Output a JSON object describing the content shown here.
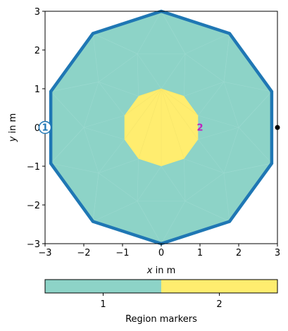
{
  "chart_data": {
    "type": "mesh",
    "xlabel": {
      "var": "x",
      "rest": " in m"
    },
    "ylabel": {
      "var": "y",
      "rest": " in m"
    },
    "xlim": [
      -3,
      3
    ],
    "ylim": [
      -3,
      3
    ],
    "xticks": [
      -3,
      -2,
      -1,
      0,
      1,
      2,
      3
    ],
    "yticks": [
      -3,
      -2,
      -1,
      0,
      1,
      2,
      3
    ],
    "xtick_labels": [
      "−3",
      "−2",
      "−1",
      "0",
      "1",
      "2",
      "3"
    ],
    "ytick_labels": [
      "−3",
      "−2",
      "−1",
      "0",
      "1",
      "2",
      "3"
    ],
    "regions": [
      {
        "marker": 1,
        "color": "#8dd3c7",
        "shape": "regular-polygon",
        "sides": 10,
        "radius": 3,
        "center": [
          0,
          0
        ]
      },
      {
        "marker": 2,
        "color": "#ffed6f",
        "shape": "regular-polygon",
        "sides": 10,
        "radius": 1,
        "center": [
          0,
          0
        ]
      }
    ],
    "boundary": {
      "color": "#1f77b4",
      "shape": "regular-polygon",
      "sides": 10,
      "radius": 3,
      "center": [
        0,
        0
      ]
    },
    "markers": [
      {
        "label": "1",
        "position": [
          -3,
          0
        ],
        "style": "circled",
        "color": "#1f77b4"
      },
      {
        "label": "2",
        "position": [
          1,
          0
        ],
        "style": "plain",
        "color": "#c020c0"
      }
    ],
    "nodes": [
      {
        "position": [
          3,
          0
        ],
        "color": "#000000"
      }
    ],
    "colorbar": {
      "label": "Region markers",
      "tick_labels": [
        "1",
        "2"
      ],
      "colors": [
        "#8dd3c7",
        "#ffed6f"
      ]
    }
  }
}
